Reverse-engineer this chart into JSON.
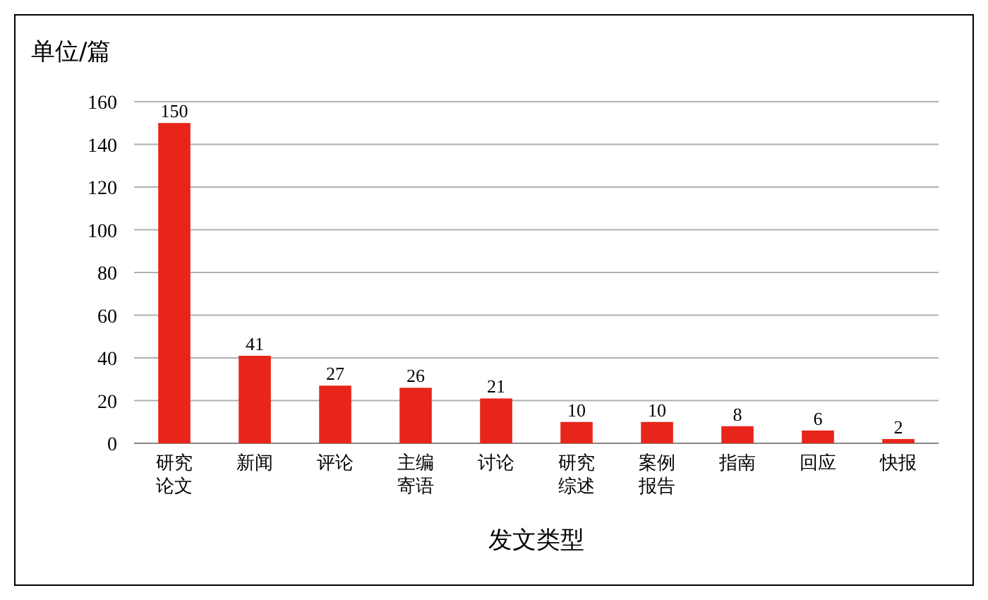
{
  "chart_data": {
    "type": "bar",
    "ylabel": "单位/篇",
    "xlabel": "发文类型",
    "categories": [
      "研究论文",
      "新闻",
      "评论",
      "主编寄语",
      "讨论",
      "研究综述",
      "案例报告",
      "指南",
      "回应",
      "快报"
    ],
    "values": [
      150,
      41,
      27,
      26,
      21,
      10,
      10,
      8,
      6,
      2
    ],
    "color": "#e8251a",
    "ylim": [
      0,
      160
    ],
    "yticks": [
      0,
      20,
      40,
      60,
      80,
      100,
      120,
      140,
      160
    ],
    "grid": "y",
    "data_labels": true
  }
}
